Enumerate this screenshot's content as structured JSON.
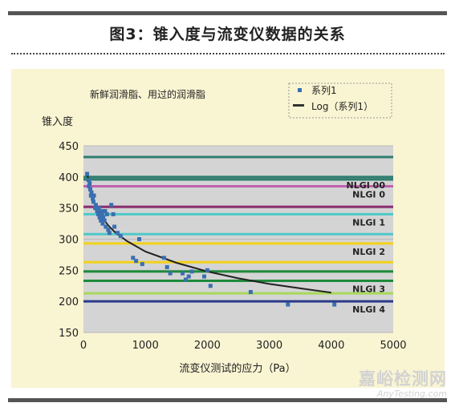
{
  "figure": {
    "title": "图3：锥入度与流变仪数据的关系"
  },
  "watermark": {
    "cn": "嘉峪检测网",
    "en": "AnyTesting.com"
  },
  "chart_data": {
    "type": "scatter",
    "title": "新鲜润滑脂、用过的润滑脂",
    "xlabel": "流变仪测试的应力（Pa）",
    "ylabel": "锥入度",
    "xlim": [
      0,
      5000
    ],
    "ylim": [
      150,
      450
    ],
    "xticks": [
      "0",
      "1000",
      "2000",
      "3000",
      "4000",
      "5000"
    ],
    "yticks": [
      "150",
      "200",
      "250",
      "300",
      "350",
      "400",
      "450"
    ],
    "grid": true,
    "legend_position": "top-right",
    "legend": [
      {
        "label": "系列1",
        "marker": "square",
        "color": "#3a6fb0"
      },
      {
        "label": "Log（系列1）",
        "marker": "line",
        "color": "#333333"
      }
    ],
    "series": [
      {
        "name": "系列1",
        "x": [
          60,
          80,
          90,
          100,
          110,
          120,
          130,
          150,
          160,
          170,
          190,
          200,
          220,
          240,
          250,
          260,
          280,
          290,
          300,
          310,
          320,
          340,
          350,
          360,
          380,
          400,
          420,
          450,
          480,
          500,
          550,
          600,
          800,
          850,
          900,
          950,
          1300,
          1350,
          1400,
          1600,
          1650,
          1700,
          1750,
          1950,
          2000,
          2050,
          2700,
          3300,
          4050
        ],
        "y": [
          405,
          395,
          385,
          390,
          380,
          370,
          375,
          365,
          360,
          370,
          350,
          355,
          345,
          340,
          350,
          335,
          330,
          345,
          340,
          325,
          335,
          330,
          345,
          320,
          340,
          315,
          310,
          355,
          340,
          320,
          310,
          305,
          270,
          265,
          300,
          260,
          270,
          255,
          245,
          245,
          235,
          240,
          248,
          240,
          250,
          225,
          215,
          195,
          195
        ]
      }
    ],
    "fit": {
      "name": "Log（系列1）",
      "x": [
        60,
        100,
        150,
        200,
        300,
        400,
        500,
        700,
        1000,
        1500,
        2000,
        2500,
        3000,
        3500,
        4000
      ],
      "y": [
        406,
        383,
        365,
        353,
        335,
        322,
        312,
        297,
        280,
        262,
        248,
        237,
        228,
        221,
        214
      ]
    },
    "reference_lines": [
      {
        "label": "",
        "y": 432,
        "color": "#2f7d6f"
      },
      {
        "label": "NLGI 00",
        "y": 400,
        "color": "#2f7d6f"
      },
      {
        "label": "",
        "y": 396,
        "color": "#2f7d6f"
      },
      {
        "label": "NLGI 0",
        "y": 385,
        "color": "#c060b0"
      },
      {
        "label": "",
        "y": 352,
        "color": "#8a2e6e"
      },
      {
        "label": "NLGI 1",
        "y": 340,
        "color": "#4fc8c8"
      },
      {
        "label": "",
        "y": 308,
        "color": "#4fc8c8"
      },
      {
        "label": "NLGI 2",
        "y": 293,
        "color": "#f2d21a"
      },
      {
        "label": "",
        "y": 263,
        "color": "#f2d21a"
      },
      {
        "label": "",
        "y": 248,
        "color": "#1e8a3a"
      },
      {
        "label": "NLGI 3",
        "y": 233,
        "color": "#1e8a3a"
      },
      {
        "label": "",
        "y": 213,
        "color": "#a8d85a"
      },
      {
        "label": "NLGI 4",
        "y": 200,
        "color": "#2a3a8a"
      }
    ],
    "colors": {
      "points": "#3a6fb0",
      "fit_line": "#222222",
      "plot_background": "#d4d4d4"
    }
  }
}
